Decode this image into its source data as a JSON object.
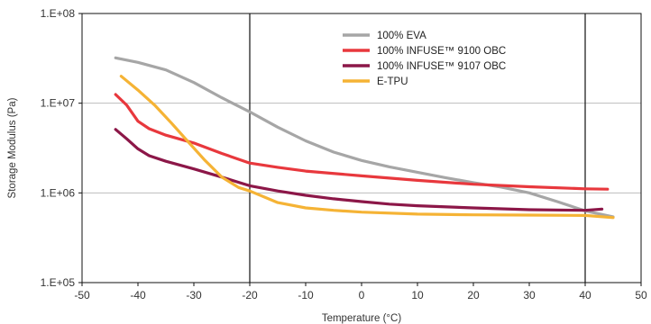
{
  "chart_data": {
    "type": "line",
    "title": "",
    "xlabel": "Temperature (°C)",
    "ylabel": "Storage Modulus (Pa)",
    "xlim": [
      -50,
      50
    ],
    "ylim": [
      100000,
      100000000
    ],
    "yscale": "log",
    "x_ticks": [
      -50,
      -40,
      -30,
      -20,
      -10,
      0,
      10,
      20,
      30,
      40,
      50
    ],
    "y_ticks": [
      {
        "value": 100000,
        "label": "1.E+05"
      },
      {
        "value": 1000000,
        "label": "1.E+06"
      },
      {
        "value": 10000000,
        "label": "1.E+07"
      },
      {
        "value": 100000000,
        "label": "1.E+08"
      }
    ],
    "grid": "horizontal",
    "reference_lines_x": [
      -20,
      40
    ],
    "legend_position": "top-center",
    "series": [
      {
        "name": "100% EVA",
        "color": "#a6a6a6",
        "points": [
          [
            -44,
            32000000
          ],
          [
            -40,
            28500000
          ],
          [
            -35,
            23500000
          ],
          [
            -30,
            17000000
          ],
          [
            -25,
            11500000
          ],
          [
            -20,
            8000000
          ],
          [
            -15,
            5400000
          ],
          [
            -10,
            3800000
          ],
          [
            -5,
            2850000
          ],
          [
            0,
            2300000
          ],
          [
            5,
            1950000
          ],
          [
            10,
            1700000
          ],
          [
            15,
            1480000
          ],
          [
            20,
            1300000
          ],
          [
            25,
            1160000
          ],
          [
            30,
            1000000
          ],
          [
            35,
            800000
          ],
          [
            40,
            630000
          ],
          [
            45,
            540000
          ]
        ]
      },
      {
        "name": "100% INFUSE™ 9100 OBC",
        "color": "#e8383d",
        "points": [
          [
            -44,
            12500000
          ],
          [
            -42,
            9500000
          ],
          [
            -40,
            6300000
          ],
          [
            -38,
            5200000
          ],
          [
            -35,
            4400000
          ],
          [
            -30,
            3600000
          ],
          [
            -25,
            2750000
          ],
          [
            -20,
            2150000
          ],
          [
            -15,
            1930000
          ],
          [
            -10,
            1750000
          ],
          [
            0,
            1550000
          ],
          [
            10,
            1380000
          ],
          [
            20,
            1250000
          ],
          [
            30,
            1170000
          ],
          [
            40,
            1110000
          ],
          [
            44,
            1100000
          ]
        ]
      },
      {
        "name": "100% INFUSE™ 9107 OBC",
        "color": "#8c1748",
        "points": [
          [
            -44,
            5100000
          ],
          [
            -42,
            4000000
          ],
          [
            -40,
            3100000
          ],
          [
            -38,
            2600000
          ],
          [
            -35,
            2250000
          ],
          [
            -30,
            1850000
          ],
          [
            -25,
            1500000
          ],
          [
            -20,
            1200000
          ],
          [
            -15,
            1050000
          ],
          [
            -10,
            940000
          ],
          [
            -5,
            860000
          ],
          [
            0,
            800000
          ],
          [
            5,
            750000
          ],
          [
            10,
            720000
          ],
          [
            20,
            680000
          ],
          [
            30,
            650000
          ],
          [
            40,
            640000
          ],
          [
            43,
            660000
          ]
        ]
      },
      {
        "name": "E-TPU",
        "color": "#f5b335",
        "points": [
          [
            -43,
            20000000
          ],
          [
            -40,
            14000000
          ],
          [
            -37,
            9500000
          ],
          [
            -34,
            6000000
          ],
          [
            -31,
            3700000
          ],
          [
            -28,
            2300000
          ],
          [
            -25,
            1500000
          ],
          [
            -22,
            1150000
          ],
          [
            -20,
            1050000
          ],
          [
            -15,
            780000
          ],
          [
            -10,
            680000
          ],
          [
            -5,
            640000
          ],
          [
            0,
            610000
          ],
          [
            10,
            580000
          ],
          [
            20,
            570000
          ],
          [
            30,
            565000
          ],
          [
            40,
            560000
          ],
          [
            45,
            530000
          ]
        ]
      }
    ]
  }
}
